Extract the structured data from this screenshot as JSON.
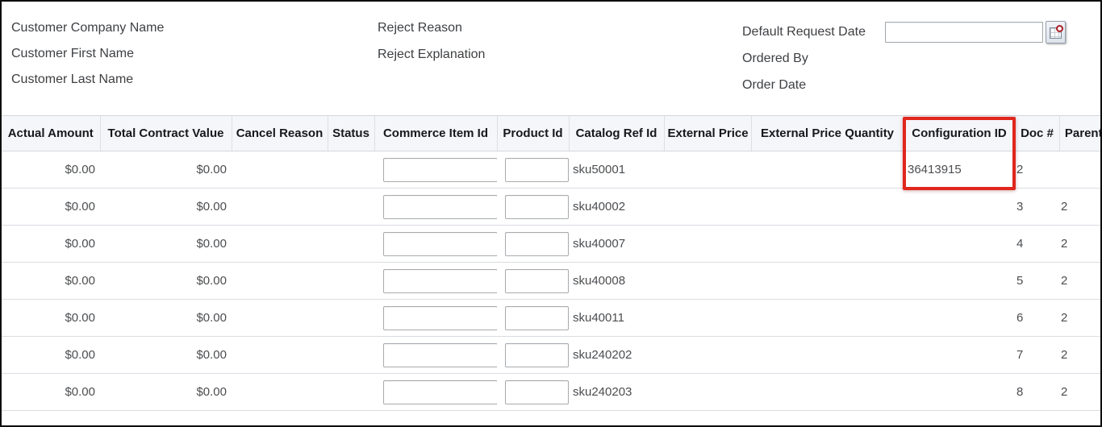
{
  "form": {
    "left_labels": [
      "Customer Company Name",
      "Customer First Name",
      "Customer Last Name"
    ],
    "middle_labels": [
      "Reject Reason",
      "Reject Explanation"
    ],
    "right_labels": [
      "Default Request Date",
      "Ordered By",
      "Order Date"
    ],
    "default_request_date_value": "",
    "date_picker_icon": "calendar-icon"
  },
  "table": {
    "columns": [
      "Actual Amount",
      "Total Contract Value",
      "Cancel Reason",
      "Status",
      "Commerce Item Id",
      "Product Id",
      "Catalog Ref Id",
      "External Price",
      "External Price Quantity",
      "Configuration ID",
      "Doc #",
      "Parent"
    ],
    "rows": [
      {
        "actual_amount": "$0.00",
        "total_contract_value": "$0.00",
        "cancel_reason": "",
        "status": "",
        "commerce_item_id": "",
        "product_id": "",
        "catalog_ref_id": "sku50001",
        "external_price": "",
        "external_price_quantity": "",
        "configuration_id": "36413915",
        "doc_num": "2",
        "parent": ""
      },
      {
        "actual_amount": "$0.00",
        "total_contract_value": "$0.00",
        "cancel_reason": "",
        "status": "",
        "commerce_item_id": "",
        "product_id": "",
        "catalog_ref_id": "sku40002",
        "external_price": "",
        "external_price_quantity": "",
        "configuration_id": "",
        "doc_num": "3",
        "parent": "2"
      },
      {
        "actual_amount": "$0.00",
        "total_contract_value": "$0.00",
        "cancel_reason": "",
        "status": "",
        "commerce_item_id": "",
        "product_id": "",
        "catalog_ref_id": "sku40007",
        "external_price": "",
        "external_price_quantity": "",
        "configuration_id": "",
        "doc_num": "4",
        "parent": "2"
      },
      {
        "actual_amount": "$0.00",
        "total_contract_value": "$0.00",
        "cancel_reason": "",
        "status": "",
        "commerce_item_id": "",
        "product_id": "",
        "catalog_ref_id": "sku40008",
        "external_price": "",
        "external_price_quantity": "",
        "configuration_id": "",
        "doc_num": "5",
        "parent": "2"
      },
      {
        "actual_amount": "$0.00",
        "total_contract_value": "$0.00",
        "cancel_reason": "",
        "status": "",
        "commerce_item_id": "",
        "product_id": "",
        "catalog_ref_id": "sku40011",
        "external_price": "",
        "external_price_quantity": "",
        "configuration_id": "",
        "doc_num": "6",
        "parent": "2"
      },
      {
        "actual_amount": "$0.00",
        "total_contract_value": "$0.00",
        "cancel_reason": "",
        "status": "",
        "commerce_item_id": "",
        "product_id": "",
        "catalog_ref_id": "sku240202",
        "external_price": "",
        "external_price_quantity": "",
        "configuration_id": "",
        "doc_num": "7",
        "parent": "2"
      },
      {
        "actual_amount": "$0.00",
        "total_contract_value": "$0.00",
        "cancel_reason": "",
        "status": "",
        "commerce_item_id": "",
        "product_id": "",
        "catalog_ref_id": "sku240203",
        "external_price": "",
        "external_price_quantity": "",
        "configuration_id": "",
        "doc_num": "8",
        "parent": "2"
      }
    ]
  },
  "highlight": {
    "target_column": "Configuration ID",
    "highlighted_value": "36413915",
    "border_color": "#e0261d"
  }
}
